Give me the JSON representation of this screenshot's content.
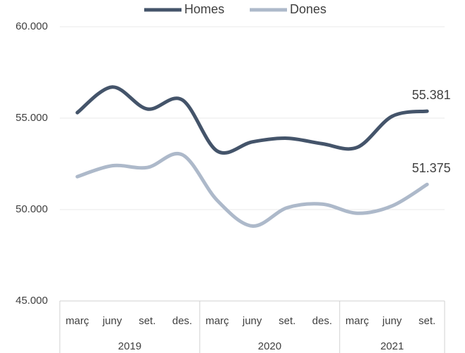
{
  "chart_data": {
    "type": "line",
    "groups": [
      {
        "name": "2019",
        "categories": [
          "març",
          "juny",
          "set.",
          "des."
        ]
      },
      {
        "name": "2020",
        "categories": [
          "març",
          "juny",
          "set.",
          "des."
        ]
      },
      {
        "name": "2021",
        "categories": [
          "març",
          "juny",
          "set."
        ]
      }
    ],
    "series": [
      {
        "name": "Homes",
        "color": "#44546a",
        "values": [
          55300,
          56700,
          55500,
          56000,
          53200,
          53700,
          53900,
          53600,
          53400,
          55100,
          55381
        ],
        "value_labels": [
          null,
          null,
          null,
          null,
          null,
          null,
          null,
          null,
          null,
          null,
          "55.381"
        ]
      },
      {
        "name": "Dones",
        "color": "#adb9ca",
        "values": [
          51800,
          52400,
          52300,
          53000,
          50500,
          49100,
          50100,
          50300,
          49800,
          50200,
          51375
        ],
        "value_labels": [
          null,
          null,
          null,
          null,
          null,
          null,
          null,
          null,
          null,
          null,
          "51.375"
        ]
      }
    ],
    "ylim": [
      45000,
      60000
    ],
    "yticks": [
      {
        "value": 45000,
        "label": "45.000"
      },
      {
        "value": 50000,
        "label": "50.000"
      },
      {
        "value": 55000,
        "label": "55.000"
      },
      {
        "value": 60000,
        "label": "60.000"
      }
    ],
    "grid": true,
    "legend": "top",
    "smooth": true
  }
}
